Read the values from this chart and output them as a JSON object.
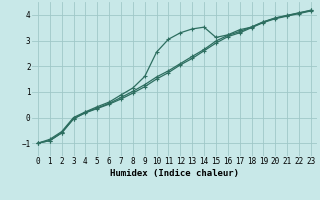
{
  "xlabel": "Humidex (Indice chaleur)",
  "bg_color": "#c8e8e8",
  "grid_color": "#a0c8c8",
  "line_color": "#2d6e60",
  "xlim": [
    -0.5,
    23.5
  ],
  "ylim": [
    -1.5,
    4.5
  ],
  "xticks": [
    0,
    1,
    2,
    3,
    4,
    5,
    6,
    7,
    8,
    9,
    10,
    11,
    12,
    13,
    14,
    15,
    16,
    17,
    18,
    19,
    20,
    21,
    22,
    23
  ],
  "yticks": [
    -1,
    0,
    1,
    2,
    3,
    4
  ],
  "line1_x": [
    0,
    1,
    2,
    3,
    4,
    5,
    6,
    7,
    8,
    9,
    10,
    11,
    12,
    13,
    14,
    15,
    16,
    17,
    18,
    19,
    20,
    21,
    22,
    23
  ],
  "line1_y": [
    -1.0,
    -0.9,
    -0.6,
    -0.05,
    0.18,
    0.35,
    0.52,
    0.72,
    0.95,
    1.2,
    1.5,
    1.75,
    2.05,
    2.3,
    2.6,
    2.9,
    3.15,
    3.3,
    3.5,
    3.7,
    3.85,
    3.95,
    4.05,
    4.15
  ],
  "line2_x": [
    0,
    1,
    2,
    3,
    4,
    5,
    6,
    7,
    8,
    9,
    10,
    11,
    12,
    13,
    14,
    15,
    16,
    17,
    18,
    19,
    20,
    21,
    22,
    23
  ],
  "line2_y": [
    -1.0,
    -0.85,
    -0.55,
    0.0,
    0.22,
    0.42,
    0.6,
    0.88,
    1.15,
    1.6,
    2.55,
    3.05,
    3.3,
    3.45,
    3.52,
    3.12,
    3.22,
    3.42,
    3.52,
    3.72,
    3.87,
    3.97,
    4.07,
    4.17
  ],
  "line3_x": [
    0,
    1,
    2,
    3,
    4,
    5,
    6,
    7,
    8,
    9,
    10,
    11,
    12,
    13,
    14,
    15,
    16,
    17,
    18,
    19,
    20,
    21,
    22,
    23
  ],
  "line3_y": [
    -1.0,
    -0.9,
    -0.6,
    -0.05,
    0.2,
    0.37,
    0.55,
    0.78,
    1.02,
    1.28,
    1.58,
    1.82,
    2.1,
    2.38,
    2.65,
    2.98,
    3.2,
    3.35,
    3.53,
    3.73,
    3.88,
    3.98,
    4.08,
    4.18
  ]
}
